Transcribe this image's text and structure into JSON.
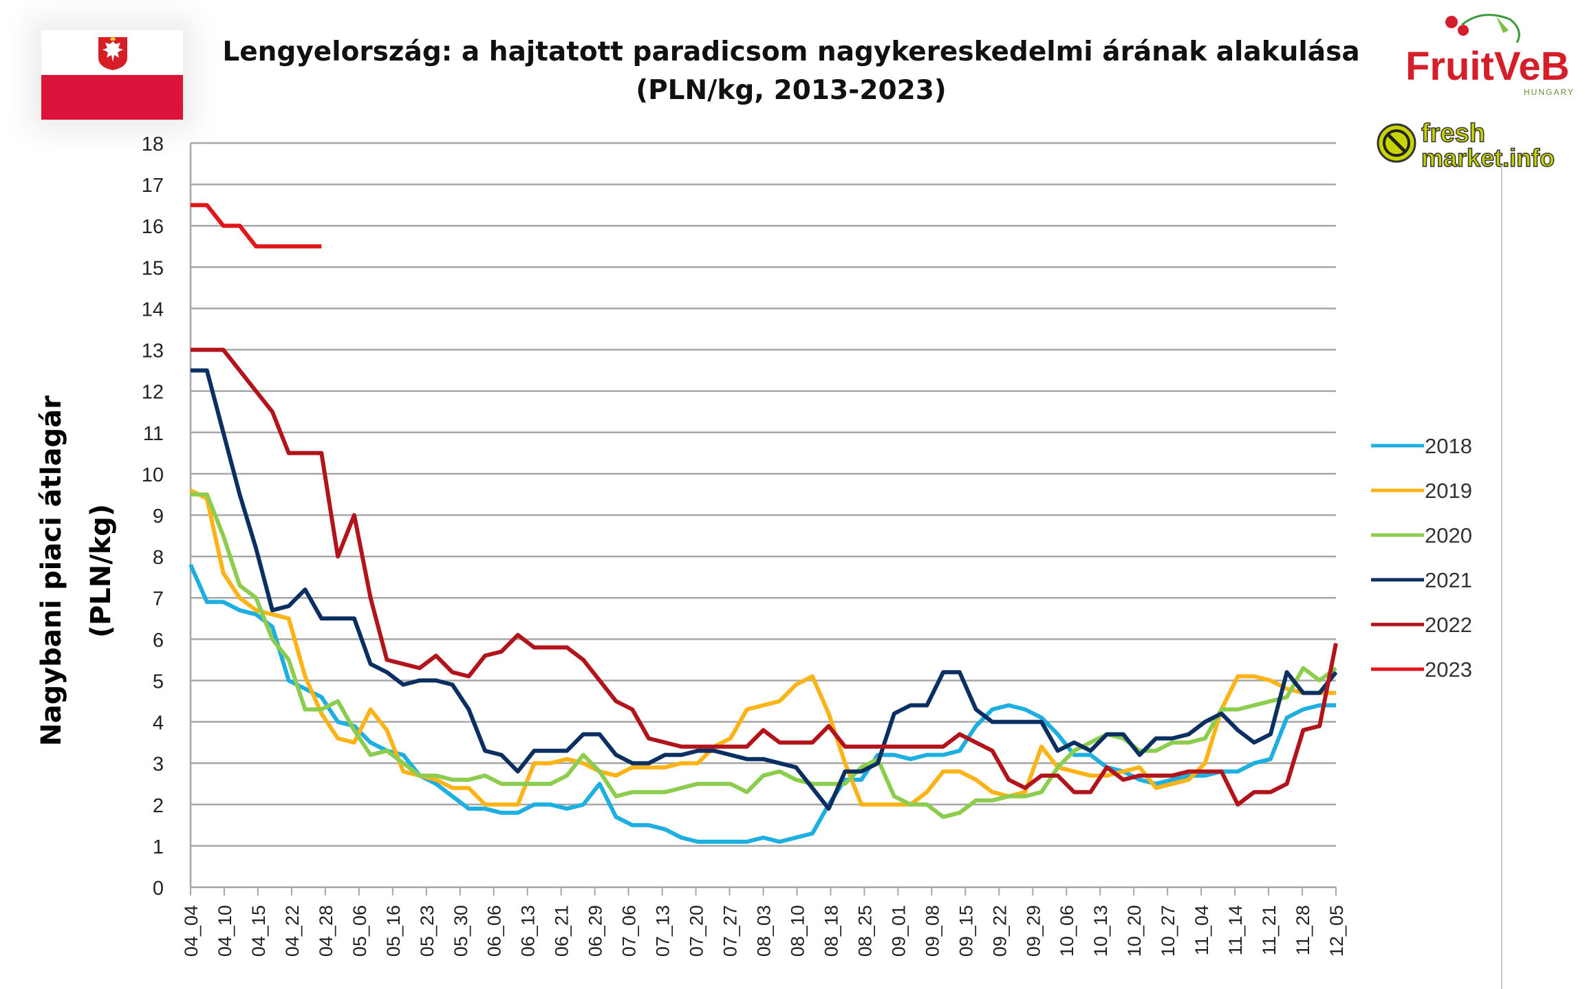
{
  "title_line1": "Lengyelország: a hajtatott paradicsom nagykereskedelmi árának alakulása",
  "title_line2": "(PLN/kg, 2013-2023)",
  "logos": {
    "fruitveb": "FruitVeB",
    "fruitveb_sub": "HUNGARY",
    "freshmarket_1": "fresh",
    "freshmarket_2": "market.info"
  },
  "chart_data": {
    "type": "line",
    "title": "Lengyelország: a hajtatott paradicsom nagykereskedelmi árának alakulása (PLN/kg, 2013-2023)",
    "ylabel_line1": "Nagybani piaci átlagár",
    "ylabel_line2": "(PLN/kg)",
    "xlabel": "",
    "ylim": [
      0,
      18
    ],
    "yticks": [
      0,
      1,
      2,
      3,
      4,
      5,
      6,
      7,
      8,
      9,
      10,
      11,
      12,
      13,
      14,
      15,
      16,
      17,
      18
    ],
    "grid": true,
    "legend_position": "right",
    "x_tick_labels": [
      "04_04",
      "04_10",
      "04_15",
      "04_22",
      "04_28",
      "05_06",
      "05_16",
      "05_23",
      "05_30",
      "06_06",
      "06_13",
      "06_21",
      "06_29",
      "07_06",
      "07_13",
      "07_20",
      "07_27",
      "08_03",
      "08_10",
      "08_18",
      "08_25",
      "09_01",
      "09_08",
      "09_15",
      "09_22",
      "09_29",
      "10_06",
      "10_13",
      "10_20",
      "10_27",
      "11_04",
      "11_14",
      "11_21",
      "11_28",
      "12_05"
    ],
    "series": [
      {
        "name": "2018",
        "color": "#1eaee0",
        "values": [
          7.8,
          6.9,
          6.9,
          6.7,
          6.6,
          6.3,
          5.0,
          4.8,
          4.6,
          4.0,
          3.9,
          3.5,
          3.3,
          3.2,
          2.7,
          2.5,
          2.2,
          1.9,
          1.9,
          1.8,
          1.8,
          2.0,
          2.0,
          1.9,
          2.0,
          2.5,
          1.7,
          1.5,
          1.5,
          1.4,
          1.2,
          1.1,
          1.1,
          1.1,
          1.1,
          1.2,
          1.1,
          1.2,
          1.3,
          2.0,
          2.6,
          2.6,
          3.2,
          3.2,
          3.1,
          3.2,
          3.2,
          3.3,
          3.9,
          4.3,
          4.4,
          4.3,
          4.1,
          3.7,
          3.2,
          3.2,
          2.9,
          2.8,
          2.6,
          2.5,
          2.6,
          2.7,
          2.7,
          2.8,
          2.8,
          3.0,
          3.1,
          4.1,
          4.3,
          4.4,
          4.4
        ]
      },
      {
        "name": "2019",
        "color": "#fbb418",
        "values": [
          9.6,
          9.4,
          7.6,
          7.0,
          6.7,
          6.6,
          6.5,
          5.1,
          4.2,
          3.6,
          3.5,
          4.3,
          3.8,
          2.8,
          2.7,
          2.6,
          2.4,
          2.4,
          2.0,
          2.0,
          2.0,
          3.0,
          3.0,
          3.1,
          3.0,
          2.8,
          2.7,
          2.9,
          2.9,
          2.9,
          3.0,
          3.0,
          3.4,
          3.6,
          4.3,
          4.4,
          4.5,
          4.9,
          5.1,
          4.2,
          3.0,
          2.0,
          2.0,
          2.0,
          2.0,
          2.3,
          2.8,
          2.8,
          2.6,
          2.3,
          2.2,
          2.3,
          3.4,
          2.9,
          2.8,
          2.7,
          2.7,
          2.8,
          2.9,
          2.4,
          2.5,
          2.6,
          3.0,
          4.3,
          5.1,
          5.1,
          5.0,
          4.8,
          4.7,
          4.7,
          4.7
        ]
      },
      {
        "name": "2020",
        "color": "#8ccd4f",
        "values": [
          9.5,
          9.5,
          8.5,
          7.3,
          7.0,
          6.0,
          5.5,
          4.3,
          4.3,
          4.5,
          3.8,
          3.2,
          3.3,
          3.0,
          2.7,
          2.7,
          2.6,
          2.6,
          2.7,
          2.5,
          2.5,
          2.5,
          2.5,
          2.7,
          3.2,
          2.8,
          2.2,
          2.3,
          2.3,
          2.3,
          2.4,
          2.5,
          2.5,
          2.5,
          2.3,
          2.7,
          2.8,
          2.6,
          2.5,
          2.5,
          2.5,
          2.9,
          3.1,
          2.2,
          2.0,
          2.0,
          1.7,
          1.8,
          2.1,
          2.1,
          2.2,
          2.2,
          2.3,
          2.9,
          3.3,
          3.5,
          3.7,
          3.6,
          3.3,
          3.3,
          3.5,
          3.5,
          3.6,
          4.3,
          4.3,
          4.4,
          4.5,
          4.6,
          5.3,
          5.0,
          5.3
        ]
      },
      {
        "name": "2021",
        "color": "#0c2f62",
        "values": [
          12.5,
          12.5,
          11.0,
          9.5,
          8.2,
          6.7,
          6.8,
          7.2,
          6.5,
          6.5,
          6.5,
          5.4,
          5.2,
          4.9,
          5.0,
          5.0,
          4.9,
          4.3,
          3.3,
          3.2,
          2.8,
          3.3,
          3.3,
          3.3,
          3.7,
          3.7,
          3.2,
          3.0,
          3.0,
          3.2,
          3.2,
          3.3,
          3.3,
          3.2,
          3.1,
          3.1,
          3.0,
          2.9,
          2.4,
          1.9,
          2.8,
          2.8,
          3.0,
          4.2,
          4.4,
          4.4,
          5.2,
          5.2,
          4.3,
          4.0,
          4.0,
          4.0,
          4.0,
          3.3,
          3.5,
          3.3,
          3.7,
          3.7,
          3.2,
          3.6,
          3.6,
          3.7,
          4.0,
          4.2,
          3.8,
          3.5,
          3.7,
          5.2,
          4.7,
          4.7,
          5.2
        ]
      },
      {
        "name": "2022",
        "color": "#b1141b",
        "values": [
          13.0,
          13.0,
          13.0,
          12.5,
          12.0,
          11.5,
          10.5,
          10.5,
          10.5,
          8.0,
          9.0,
          7.0,
          5.5,
          5.4,
          5.3,
          5.6,
          5.2,
          5.1,
          5.6,
          5.7,
          6.1,
          5.8,
          5.8,
          5.8,
          5.5,
          5.0,
          4.5,
          4.3,
          3.6,
          3.5,
          3.4,
          3.4,
          3.4,
          3.4,
          3.4,
          3.8,
          3.5,
          3.5,
          3.5,
          3.9,
          3.4,
          3.4,
          3.4,
          3.4,
          3.4,
          3.4,
          3.4,
          3.7,
          3.5,
          3.3,
          2.6,
          2.4,
          2.7,
          2.7,
          2.3,
          2.3,
          2.9,
          2.6,
          2.7,
          2.7,
          2.7,
          2.8,
          2.8,
          2.8,
          2.0,
          2.3,
          2.3,
          2.5,
          3.8,
          3.9,
          5.9
        ]
      },
      {
        "name": "2023",
        "color": "#e0161b",
        "values": [
          16.5,
          16.5,
          16.0,
          16.0,
          15.5,
          15.5,
          15.5,
          15.5,
          15.5
        ]
      }
    ]
  }
}
